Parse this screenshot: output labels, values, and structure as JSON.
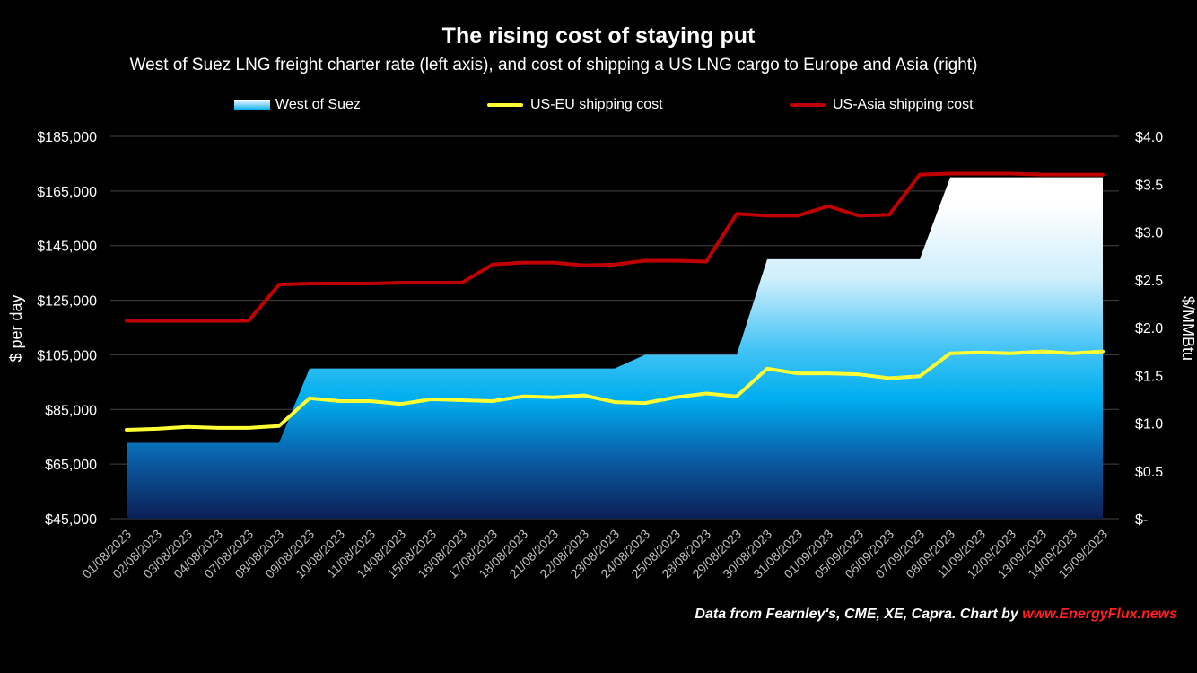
{
  "chart_data": {
    "type": "area+line",
    "title": "The rising cost of staying put",
    "subtitle": "West of Suez LNG freight charter rate (left axis), and cost of shipping a US LNG cargo to Europe and Asia (right)",
    "ylabel_left": "$ per day",
    "ylabel_right": "$/MMBtu",
    "ylim_left": [
      45000,
      185000
    ],
    "ylim_right": [
      0,
      4.0
    ],
    "left_ticks": [
      "$45,000",
      "$65,000",
      "$85,000",
      "$105,000",
      "$125,000",
      "$145,000",
      "$165,000",
      "$185,000"
    ],
    "right_ticks": [
      "$-",
      "$0.5",
      "$1.0",
      "$1.5",
      "$2.0",
      "$2.5",
      "$3.0",
      "$3.5",
      "$4.0"
    ],
    "categories": [
      "01/08/2023",
      "02/08/2023",
      "03/08/2023",
      "04/08/2023",
      "07/08/2023",
      "08/08/2023",
      "09/08/2023",
      "10/08/2023",
      "11/08/2023",
      "14/08/2023",
      "15/08/2023",
      "16/08/2023",
      "17/08/2023",
      "18/08/2023",
      "21/08/2023",
      "22/08/2023",
      "23/08/2023",
      "24/08/2023",
      "25/08/2023",
      "28/08/2023",
      "29/08/2023",
      "30/08/2023",
      "31/08/2023",
      "01/09/2023",
      "05/09/2023",
      "06/09/2023",
      "07/09/2023",
      "08/09/2023",
      "11/09/2023",
      "12/09/2023",
      "13/09/2023",
      "14/09/2023",
      "15/09/2023"
    ],
    "series": [
      {
        "name": "West of Suez",
        "axis": "left",
        "kind": "area",
        "color": "#00aeef",
        "values": [
          72750,
          72750,
          72750,
          72750,
          72750,
          72750,
          100000,
          100000,
          100000,
          100000,
          100000,
          100000,
          100000,
          100000,
          100000,
          100000,
          100000,
          105000,
          105000,
          105000,
          105000,
          140000,
          140000,
          140000,
          140000,
          140000,
          140000,
          170000,
          170000,
          170000,
          170000,
          170000,
          170000
        ]
      },
      {
        "name": "US-EU shipping cost",
        "axis": "right",
        "kind": "line",
        "color": "#ffff33",
        "values": [
          0.93,
          0.94,
          0.96,
          0.95,
          0.95,
          0.97,
          1.26,
          1.23,
          1.23,
          1.2,
          1.25,
          1.24,
          1.23,
          1.28,
          1.27,
          1.29,
          1.22,
          1.21,
          1.27,
          1.31,
          1.28,
          1.57,
          1.52,
          1.52,
          1.51,
          1.47,
          1.49,
          1.73,
          1.74,
          1.73,
          1.75,
          1.73,
          1.75
        ]
      },
      {
        "name": "US-Asia shipping cost",
        "axis": "right",
        "kind": "line",
        "color": "#c00000",
        "values": [
          2.07,
          2.07,
          2.07,
          2.07,
          2.07,
          2.45,
          2.46,
          2.46,
          2.46,
          2.47,
          2.47,
          2.47,
          2.66,
          2.68,
          2.68,
          2.65,
          2.66,
          2.7,
          2.7,
          2.69,
          3.19,
          3.17,
          3.17,
          3.27,
          3.17,
          3.18,
          3.6,
          3.61,
          3.61,
          3.61,
          3.6,
          3.6,
          3.6
        ]
      }
    ],
    "legend_position": "top-center",
    "grid": true
  },
  "footer": {
    "source_text": "Data from Fearnley's, CME, XE, Capra. Chart by ",
    "brand": "www.EnergyFlux.news"
  }
}
